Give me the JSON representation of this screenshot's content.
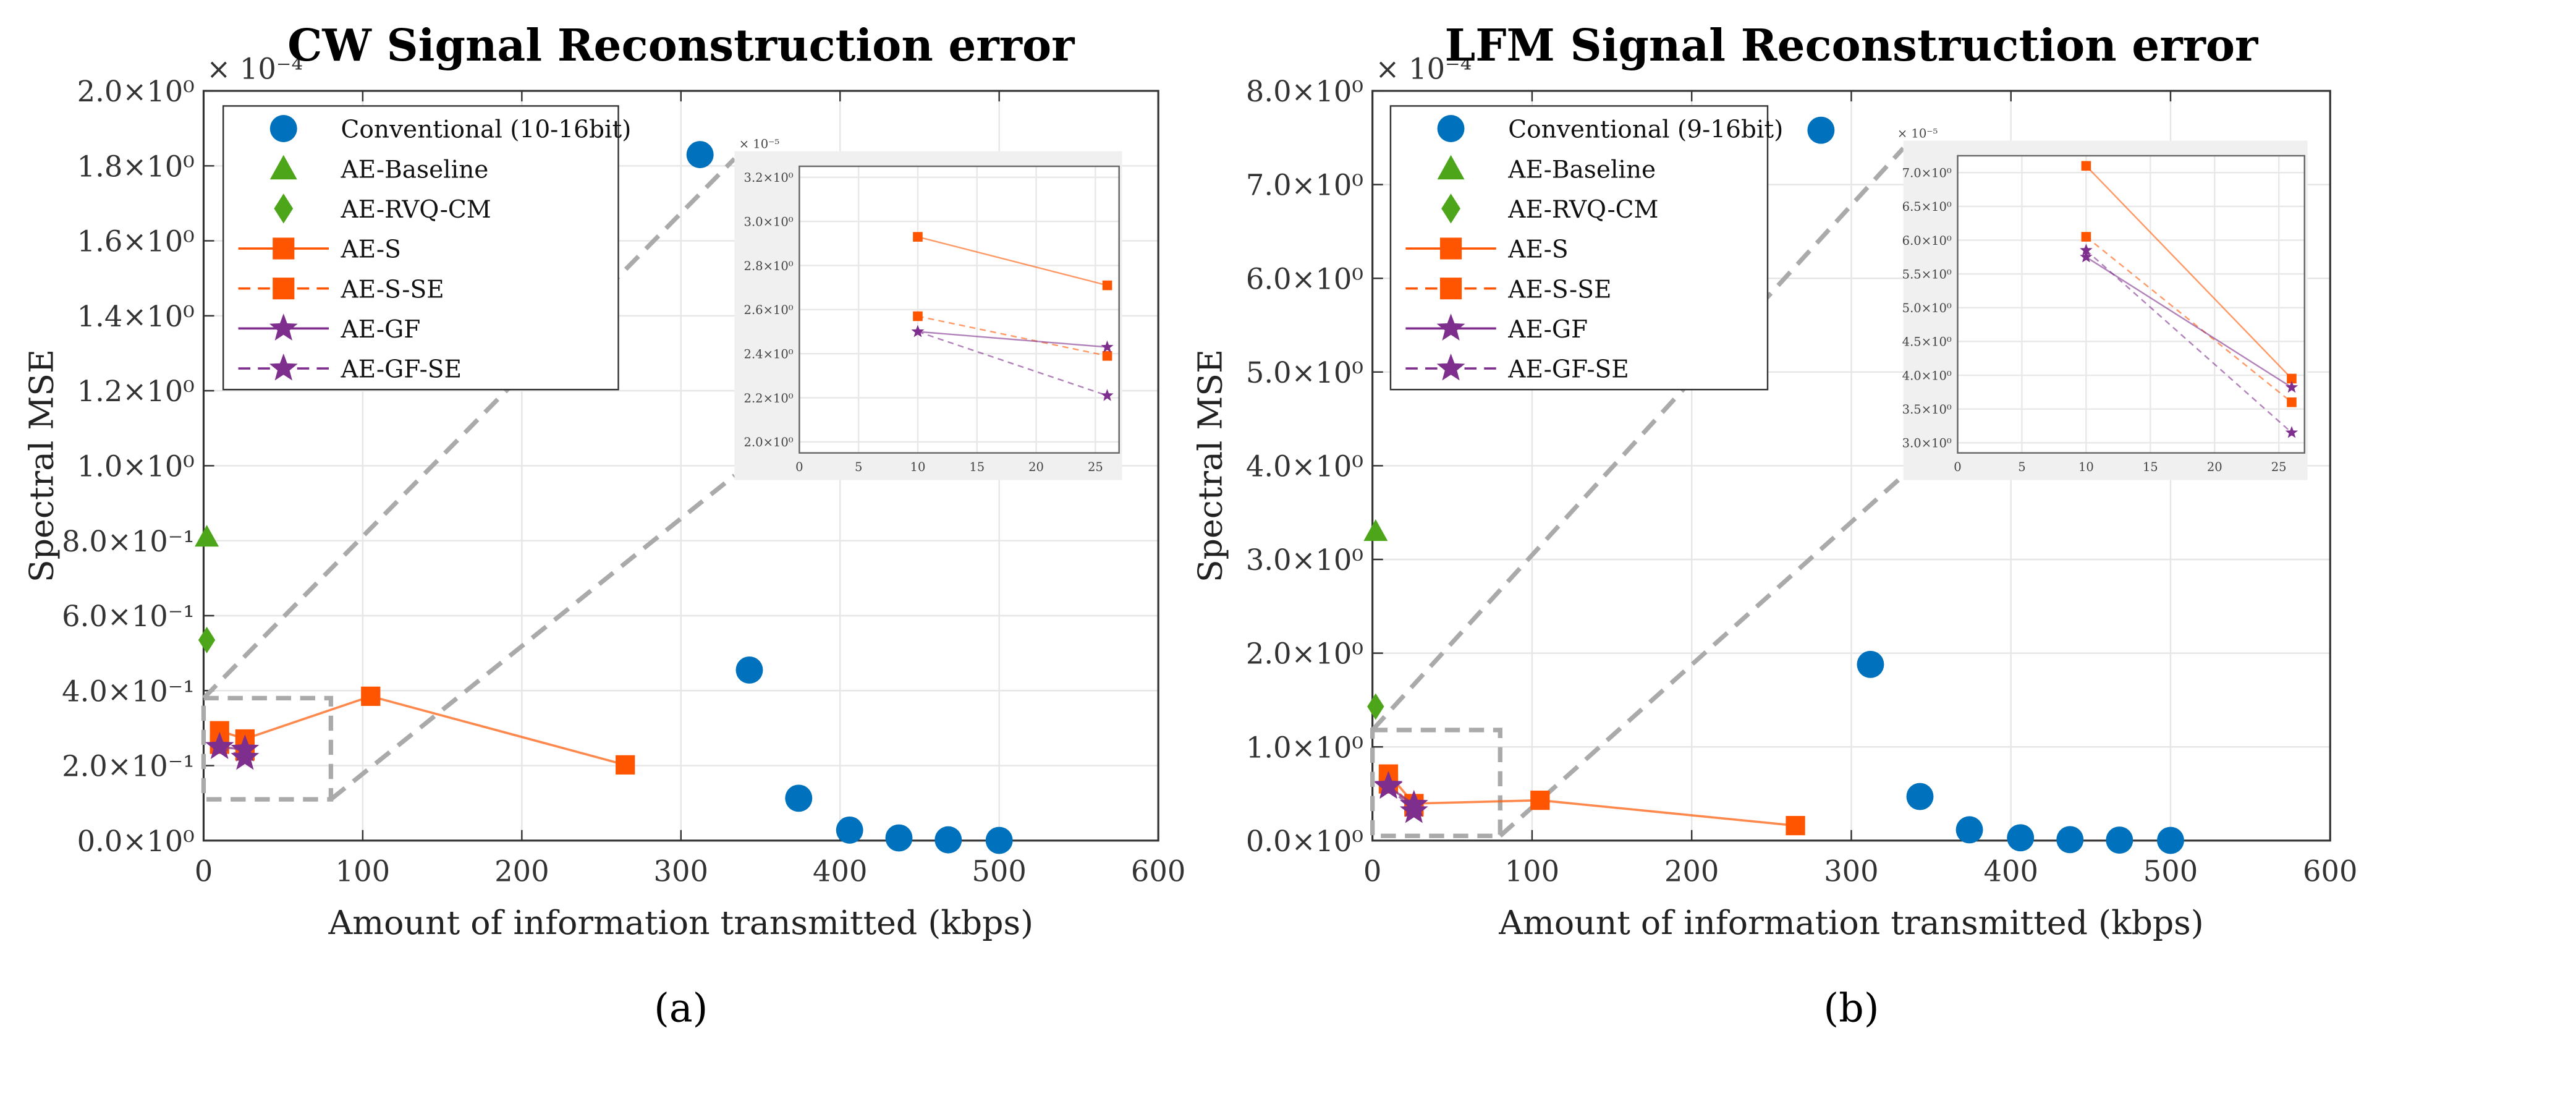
{
  "chart_data": [
    {
      "type": "scatter",
      "panel_label": "(a)",
      "title": "CW Signal Reconstruction error",
      "xlabel": "Amount of information transmitted (kbps)",
      "ylabel": "Spectral MSE",
      "y_multiplier": "× 10⁻⁴",
      "xlim": [
        0,
        600
      ],
      "ylim": [
        0,
        2.0
      ],
      "x_ticks": [
        0,
        100,
        200,
        300,
        400,
        500,
        600
      ],
      "y_ticks": [
        0,
        0.2,
        0.4,
        0.6,
        0.8,
        1.0,
        1.2,
        1.4,
        1.6,
        1.8,
        2.0
      ],
      "y_tick_labels": [
        "0.0×10⁰",
        "2.0×10⁻¹",
        "4.0×10⁻¹",
        "6.0×10⁻¹",
        "8.0×10⁻¹",
        "1.0×10⁰",
        "1.2×10⁰",
        "1.4×10⁰",
        "1.6×10⁰",
        "1.8×10⁰",
        "2.0×10⁰"
      ],
      "grid": true,
      "legend_position": "top-left",
      "series": [
        {
          "name": "Conventional (10-16bit)",
          "marker": "circle",
          "line": "none",
          "color": "#0072BD",
          "x": [
            312,
            343,
            374,
            406,
            437,
            468,
            500
          ],
          "y": [
            1.83,
            0.455,
            0.113,
            0.028,
            0.007,
            0.002,
            0.0005
          ]
        },
        {
          "name": "AE-Baseline",
          "marker": "triangle",
          "line": "none",
          "color": "#4DA619",
          "x": [
            2
          ],
          "y": [
            0.81
          ]
        },
        {
          "name": "AE-RVQ-CM",
          "marker": "diamond",
          "line": "none",
          "color": "#4DA619",
          "x": [
            2
          ],
          "y": [
            0.535
          ]
        },
        {
          "name": "AE-S",
          "marker": "square",
          "line": "solid",
          "color": "#FF5500",
          "x": [
            10,
            26,
            105,
            265
          ],
          "y": [
            0.293,
            0.271,
            0.385,
            0.202
          ]
        },
        {
          "name": "AE-S-SE",
          "marker": "square",
          "line": "dashed",
          "color": "#FF5500",
          "x": [
            10,
            26
          ],
          "y": [
            0.257,
            0.239
          ]
        },
        {
          "name": "AE-GF",
          "marker": "star",
          "line": "solid",
          "color": "#7E2F8E",
          "x": [
            10,
            26
          ],
          "y": [
            0.25,
            0.243
          ]
        },
        {
          "name": "AE-GF-SE",
          "marker": "star",
          "line": "dashed",
          "color": "#7E2F8E",
          "x": [
            10,
            26
          ],
          "y": [
            0.25,
            0.221
          ]
        }
      ],
      "zoom_box": {
        "xlim": [
          0,
          80
        ],
        "ylim": [
          0.11,
          0.38
        ]
      },
      "inset": {
        "y_multiplier": "× 10⁻⁵",
        "xlim": [
          0,
          27
        ],
        "ylim": [
          1.95,
          3.25
        ],
        "x_ticks": [
          0,
          5,
          10,
          15,
          20,
          25
        ],
        "y_ticks": [
          2.0,
          2.2,
          2.4,
          2.6,
          2.8,
          3.0,
          3.2
        ],
        "y_tick_labels": [
          "2.0×10⁰",
          "2.2×10⁰",
          "2.4×10⁰",
          "2.6×10⁰",
          "2.8×10⁰",
          "3.0×10⁰",
          "3.2×10⁰"
        ],
        "series": [
          {
            "name": "AE-S",
            "x": [
              10,
              26
            ],
            "y": [
              2.93,
              2.71
            ]
          },
          {
            "name": "AE-S-SE",
            "x": [
              10,
              26
            ],
            "y": [
              2.57,
              2.39
            ]
          },
          {
            "name": "AE-GF",
            "x": [
              10,
              26
            ],
            "y": [
              2.5,
              2.43
            ]
          },
          {
            "name": "AE-GF-SE",
            "x": [
              10,
              26
            ],
            "y": [
              2.5,
              2.21
            ]
          }
        ]
      }
    },
    {
      "type": "scatter",
      "panel_label": "(b)",
      "title": "LFM Signal Reconstruction error",
      "xlabel": "Amount of information transmitted (kbps)",
      "ylabel": "Spectral MSE",
      "y_multiplier": "× 10⁻⁴",
      "xlim": [
        0,
        600
      ],
      "ylim": [
        0,
        8.0
      ],
      "x_ticks": [
        0,
        100,
        200,
        300,
        400,
        500,
        600
      ],
      "y_ticks": [
        0,
        1,
        2,
        3,
        4,
        5,
        6,
        7,
        8
      ],
      "y_tick_labels": [
        "0.0×10⁰",
        "1.0×10⁰",
        "2.0×10⁰",
        "3.0×10⁰",
        "4.0×10⁰",
        "5.0×10⁰",
        "6.0×10⁰",
        "7.0×10⁰",
        "8.0×10⁰"
      ],
      "grid": true,
      "legend_position": "top-left",
      "series": [
        {
          "name": "Conventional (9-16bit)",
          "marker": "circle",
          "line": "none",
          "color": "#0072BD",
          "x": [
            281,
            312,
            343,
            374,
            406,
            437,
            468,
            500
          ],
          "y": [
            7.58,
            1.88,
            0.47,
            0.115,
            0.03,
            0.01,
            0.005,
            0.002
          ]
        },
        {
          "name": "AE-Baseline",
          "marker": "triangle",
          "line": "none",
          "color": "#4DA619",
          "x": [
            2
          ],
          "y": [
            3.3
          ]
        },
        {
          "name": "AE-RVQ-CM",
          "marker": "diamond",
          "line": "none",
          "color": "#4DA619",
          "x": [
            2
          ],
          "y": [
            1.43
          ]
        },
        {
          "name": "AE-S",
          "marker": "square",
          "line": "solid",
          "color": "#FF5500",
          "x": [
            10,
            26,
            105,
            265
          ],
          "y": [
            0.71,
            0.395,
            0.43,
            0.16
          ]
        },
        {
          "name": "AE-S-SE",
          "marker": "square",
          "line": "dashed",
          "color": "#FF5500",
          "x": [
            10,
            26
          ],
          "y": [
            0.605,
            0.36
          ]
        },
        {
          "name": "AE-GF",
          "marker": "star",
          "line": "solid",
          "color": "#7E2F8E",
          "x": [
            10,
            26
          ],
          "y": [
            0.575,
            0.382
          ]
        },
        {
          "name": "AE-GF-SE",
          "marker": "star",
          "line": "dashed",
          "color": "#7E2F8E",
          "x": [
            10,
            26
          ],
          "y": [
            0.585,
            0.315
          ]
        }
      ],
      "zoom_box": {
        "xlim": [
          0,
          80
        ],
        "ylim": [
          0.05,
          1.18
        ]
      },
      "inset": {
        "y_multiplier": "× 10⁻⁵",
        "xlim": [
          0,
          27
        ],
        "ylim": [
          2.85,
          7.25
        ],
        "x_ticks": [
          0,
          5,
          10,
          15,
          20,
          25
        ],
        "y_ticks": [
          3.0,
          3.5,
          4.0,
          4.5,
          5.0,
          5.5,
          6.0,
          6.5,
          7.0
        ],
        "y_tick_labels": [
          "3.0×10⁰",
          "3.5×10⁰",
          "4.0×10⁰",
          "4.5×10⁰",
          "5.0×10⁰",
          "5.5×10⁰",
          "6.0×10⁰",
          "6.5×10⁰",
          "7.0×10⁰"
        ],
        "series": [
          {
            "name": "AE-S",
            "x": [
              10,
              26
            ],
            "y": [
              7.1,
              3.95
            ]
          },
          {
            "name": "AE-S-SE",
            "x": [
              10,
              26
            ],
            "y": [
              6.05,
              3.6
            ]
          },
          {
            "name": "AE-GF",
            "x": [
              10,
              26
            ],
            "y": [
              5.75,
              3.82
            ]
          },
          {
            "name": "AE-GF-SE",
            "x": [
              10,
              26
            ],
            "y": [
              5.85,
              3.15
            ]
          }
        ]
      }
    }
  ]
}
